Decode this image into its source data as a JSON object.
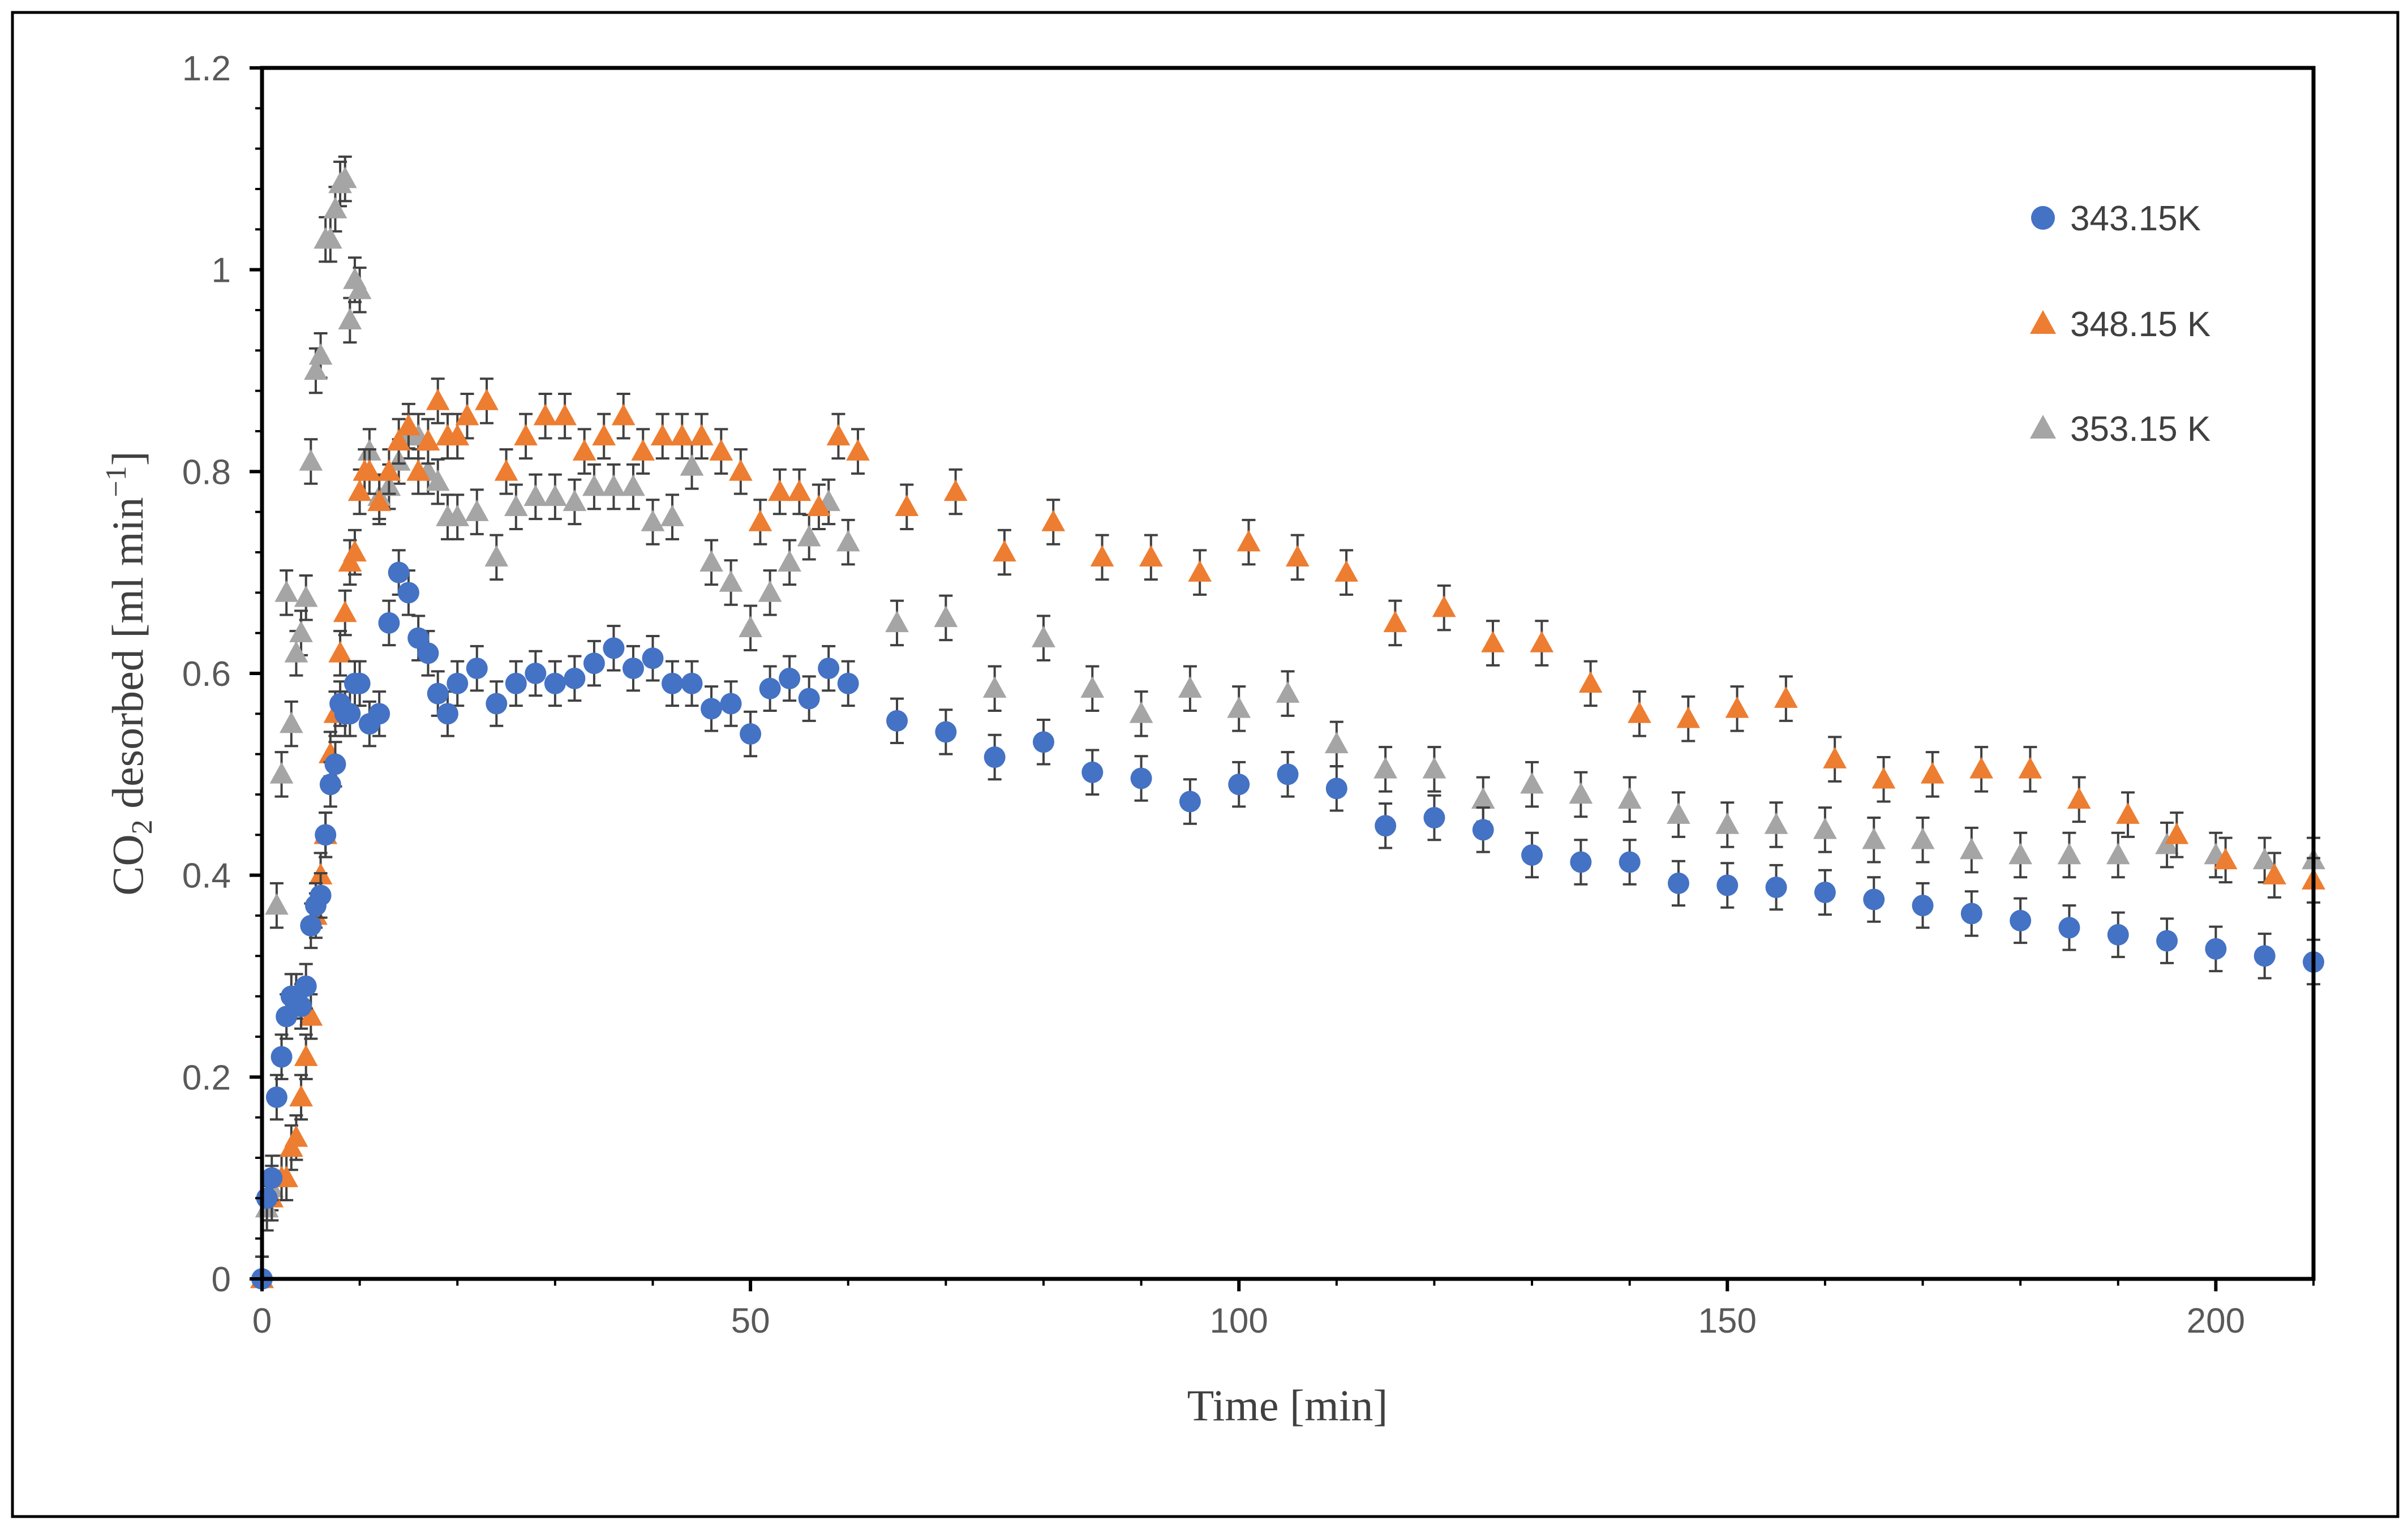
{
  "chart_data": {
    "type": "scatter",
    "xlabel": "Time [min]",
    "ylabel": {
      "prefix": "CO",
      "subscript": "2",
      "middle": " desorbed [ml min",
      "superscript": "−1",
      "suffix": "]"
    },
    "xlim": [
      0,
      210
    ],
    "ylim": [
      0,
      1.2
    ],
    "x_ticks": [
      0,
      50,
      100,
      150,
      200
    ],
    "x_tick_labels": [
      "0",
      "50",
      "100",
      "150",
      "200"
    ],
    "y_ticks": [
      0,
      0.2,
      0.4,
      0.6,
      0.8,
      1,
      1.2
    ],
    "y_tick_labels": [
      "0",
      "0.2",
      "0.4",
      "0.6",
      "0.8",
      "1",
      "1.2"
    ],
    "legend_position": "top-right",
    "series": [
      {
        "name": "343.15K",
        "marker": "circle",
        "color": "#4472C4",
        "error": 0.022,
        "points": [
          [
            0,
            0.0
          ],
          [
            0.5,
            0.08
          ],
          [
            1,
            0.1
          ],
          [
            1.5,
            0.18
          ],
          [
            2,
            0.22
          ],
          [
            2.5,
            0.26
          ],
          [
            3,
            0.28
          ],
          [
            3.5,
            0.28
          ],
          [
            4,
            0.27
          ],
          [
            4.5,
            0.29
          ],
          [
            5,
            0.35
          ],
          [
            5.5,
            0.37
          ],
          [
            6,
            0.38
          ],
          [
            6.5,
            0.44
          ],
          [
            7,
            0.49
          ],
          [
            7.5,
            0.51
          ],
          [
            8,
            0.57
          ],
          [
            8.5,
            0.56
          ],
          [
            9,
            0.56
          ],
          [
            9.5,
            0.59
          ],
          [
            10,
            0.59
          ],
          [
            11,
            0.55
          ],
          [
            12,
            0.56
          ],
          [
            13,
            0.65
          ],
          [
            14,
            0.7
          ],
          [
            15,
            0.68
          ],
          [
            16,
            0.635
          ],
          [
            17,
            0.62
          ],
          [
            18,
            0.58
          ],
          [
            19,
            0.56
          ],
          [
            20,
            0.59
          ],
          [
            22,
            0.605
          ],
          [
            24,
            0.57
          ],
          [
            26,
            0.59
          ],
          [
            28,
            0.6
          ],
          [
            30,
            0.59
          ],
          [
            32,
            0.595
          ],
          [
            34,
            0.61
          ],
          [
            36,
            0.625
          ],
          [
            38,
            0.605
          ],
          [
            40,
            0.615
          ],
          [
            42,
            0.59
          ],
          [
            44,
            0.59
          ],
          [
            46,
            0.565
          ],
          [
            48,
            0.57
          ],
          [
            50,
            0.54
          ],
          [
            52,
            0.585
          ],
          [
            54,
            0.595
          ],
          [
            56,
            0.575
          ],
          [
            58,
            0.605
          ],
          [
            60,
            0.59
          ],
          [
            65,
            0.553
          ],
          [
            70,
            0.542
          ],
          [
            75,
            0.517
          ],
          [
            80,
            0.532
          ],
          [
            85,
            0.502
          ],
          [
            90,
            0.496
          ],
          [
            95,
            0.473
          ],
          [
            100,
            0.49
          ],
          [
            105,
            0.5
          ],
          [
            110,
            0.486
          ],
          [
            115,
            0.449
          ],
          [
            120,
            0.457
          ],
          [
            125,
            0.445
          ],
          [
            130,
            0.42
          ],
          [
            135,
            0.413
          ],
          [
            140,
            0.413
          ],
          [
            145,
            0.392
          ],
          [
            150,
            0.39
          ],
          [
            155,
            0.388
          ],
          [
            160,
            0.383
          ],
          [
            165,
            0.376
          ],
          [
            170,
            0.37
          ],
          [
            175,
            0.362
          ],
          [
            180,
            0.355
          ],
          [
            185,
            0.348
          ],
          [
            190,
            0.341
          ],
          [
            195,
            0.335
          ],
          [
            200,
            0.327
          ],
          [
            205,
            0.32
          ],
          [
            210,
            0.314
          ]
        ]
      },
      {
        "name": "348.15 K",
        "marker": "triangle",
        "color": "#ED7D31",
        "error": 0.022,
        "points": [
          [
            0,
            0.0
          ],
          [
            1,
            0.08
          ],
          [
            2,
            0.1
          ],
          [
            2.5,
            0.1
          ],
          [
            3,
            0.13
          ],
          [
            3.5,
            0.14
          ],
          [
            4,
            0.18
          ],
          [
            4.5,
            0.22
          ],
          [
            5,
            0.26
          ],
          [
            5.5,
            0.36
          ],
          [
            6,
            0.4
          ],
          [
            6.5,
            0.44
          ],
          [
            7,
            0.52
          ],
          [
            7.5,
            0.56
          ],
          [
            8,
            0.62
          ],
          [
            8.5,
            0.66
          ],
          [
            9,
            0.71
          ],
          [
            9.5,
            0.72
          ],
          [
            10,
            0.78
          ],
          [
            10.5,
            0.8
          ],
          [
            11,
            0.8
          ],
          [
            12,
            0.77
          ],
          [
            13,
            0.8
          ],
          [
            14,
            0.83
          ],
          [
            15,
            0.845
          ],
          [
            16,
            0.8
          ],
          [
            17,
            0.83
          ],
          [
            18,
            0.87
          ],
          [
            19,
            0.835
          ],
          [
            20,
            0.835
          ],
          [
            21,
            0.855
          ],
          [
            23,
            0.87
          ],
          [
            25,
            0.8
          ],
          [
            27,
            0.835
          ],
          [
            29,
            0.855
          ],
          [
            31,
            0.855
          ],
          [
            33,
            0.82
          ],
          [
            35,
            0.835
          ],
          [
            37,
            0.855
          ],
          [
            39,
            0.82
          ],
          [
            41,
            0.835
          ],
          [
            43,
            0.835
          ],
          [
            45,
            0.835
          ],
          [
            47,
            0.82
          ],
          [
            49,
            0.8
          ],
          [
            51,
            0.75
          ],
          [
            53,
            0.78
          ],
          [
            55,
            0.78
          ],
          [
            57,
            0.765
          ],
          [
            59,
            0.835
          ],
          [
            61,
            0.82
          ],
          [
            66,
            0.765
          ],
          [
            71,
            0.78
          ],
          [
            76,
            0.72
          ],
          [
            81,
            0.75
          ],
          [
            86,
            0.715
          ],
          [
            91,
            0.715
          ],
          [
            96,
            0.7
          ],
          [
            101,
            0.73
          ],
          [
            106,
            0.715
          ],
          [
            111,
            0.7
          ],
          [
            116,
            0.65
          ],
          [
            121,
            0.665
          ],
          [
            126,
            0.63
          ],
          [
            131,
            0.63
          ],
          [
            136,
            0.59
          ],
          [
            141,
            0.56
          ],
          [
            146,
            0.555
          ],
          [
            151,
            0.565
          ],
          [
            156,
            0.575
          ],
          [
            161,
            0.515
          ],
          [
            166,
            0.495
          ],
          [
            171,
            0.5
          ],
          [
            176,
            0.505
          ],
          [
            181,
            0.505
          ],
          [
            186,
            0.475
          ],
          [
            191,
            0.46
          ],
          [
            196,
            0.44
          ],
          [
            201,
            0.415
          ],
          [
            206,
            0.4
          ],
          [
            210,
            0.395
          ]
        ]
      },
      {
        "name": "353.15 K",
        "marker": "triangle",
        "color": "#A5A5A5",
        "error": 0.022,
        "points": [
          [
            0,
            0.0
          ],
          [
            0.5,
            0.07
          ],
          [
            1,
            0.09
          ],
          [
            1.5,
            0.37
          ],
          [
            2,
            0.5
          ],
          [
            2.5,
            0.68
          ],
          [
            3,
            0.55
          ],
          [
            3.5,
            0.62
          ],
          [
            4,
            0.64
          ],
          [
            4.5,
            0.675
          ],
          [
            5,
            0.81
          ],
          [
            5.5,
            0.9
          ],
          [
            6,
            0.915
          ],
          [
            6.5,
            1.03
          ],
          [
            7,
            1.03
          ],
          [
            7.5,
            1.06
          ],
          [
            8,
            1.085
          ],
          [
            8.5,
            1.09
          ],
          [
            9,
            0.95
          ],
          [
            9.5,
            0.99
          ],
          [
            10,
            0.98
          ],
          [
            11,
            0.82
          ],
          [
            12,
            0.775
          ],
          [
            13,
            0.785
          ],
          [
            14,
            0.81
          ],
          [
            15,
            0.835
          ],
          [
            16,
            0.835
          ],
          [
            17,
            0.8
          ],
          [
            18,
            0.79
          ],
          [
            19,
            0.755
          ],
          [
            20,
            0.755
          ],
          [
            22,
            0.76
          ],
          [
            24,
            0.715
          ],
          [
            26,
            0.765
          ],
          [
            28,
            0.775
          ],
          [
            30,
            0.775
          ],
          [
            32,
            0.77
          ],
          [
            34,
            0.785
          ],
          [
            36,
            0.785
          ],
          [
            38,
            0.785
          ],
          [
            40,
            0.75
          ],
          [
            42,
            0.755
          ],
          [
            44,
            0.805
          ],
          [
            46,
            0.71
          ],
          [
            48,
            0.69
          ],
          [
            50,
            0.645
          ],
          [
            52,
            0.68
          ],
          [
            54,
            0.71
          ],
          [
            56,
            0.735
          ],
          [
            58,
            0.77
          ],
          [
            60,
            0.73
          ],
          [
            65,
            0.65
          ],
          [
            70,
            0.655
          ],
          [
            75,
            0.585
          ],
          [
            80,
            0.635
          ],
          [
            85,
            0.585
          ],
          [
            90,
            0.56
          ],
          [
            95,
            0.585
          ],
          [
            100,
            0.565
          ],
          [
            105,
            0.58
          ],
          [
            110,
            0.53
          ],
          [
            115,
            0.505
          ],
          [
            120,
            0.505
          ],
          [
            125,
            0.475
          ],
          [
            130,
            0.49
          ],
          [
            135,
            0.48
          ],
          [
            140,
            0.475
          ],
          [
            145,
            0.46
          ],
          [
            150,
            0.45
          ],
          [
            155,
            0.45
          ],
          [
            160,
            0.445
          ],
          [
            165,
            0.435
          ],
          [
            170,
            0.435
          ],
          [
            175,
            0.425
          ],
          [
            180,
            0.42
          ],
          [
            185,
            0.42
          ],
          [
            190,
            0.42
          ],
          [
            195,
            0.43
          ],
          [
            200,
            0.42
          ],
          [
            205,
            0.415
          ],
          [
            210,
            0.415
          ]
        ]
      }
    ]
  }
}
